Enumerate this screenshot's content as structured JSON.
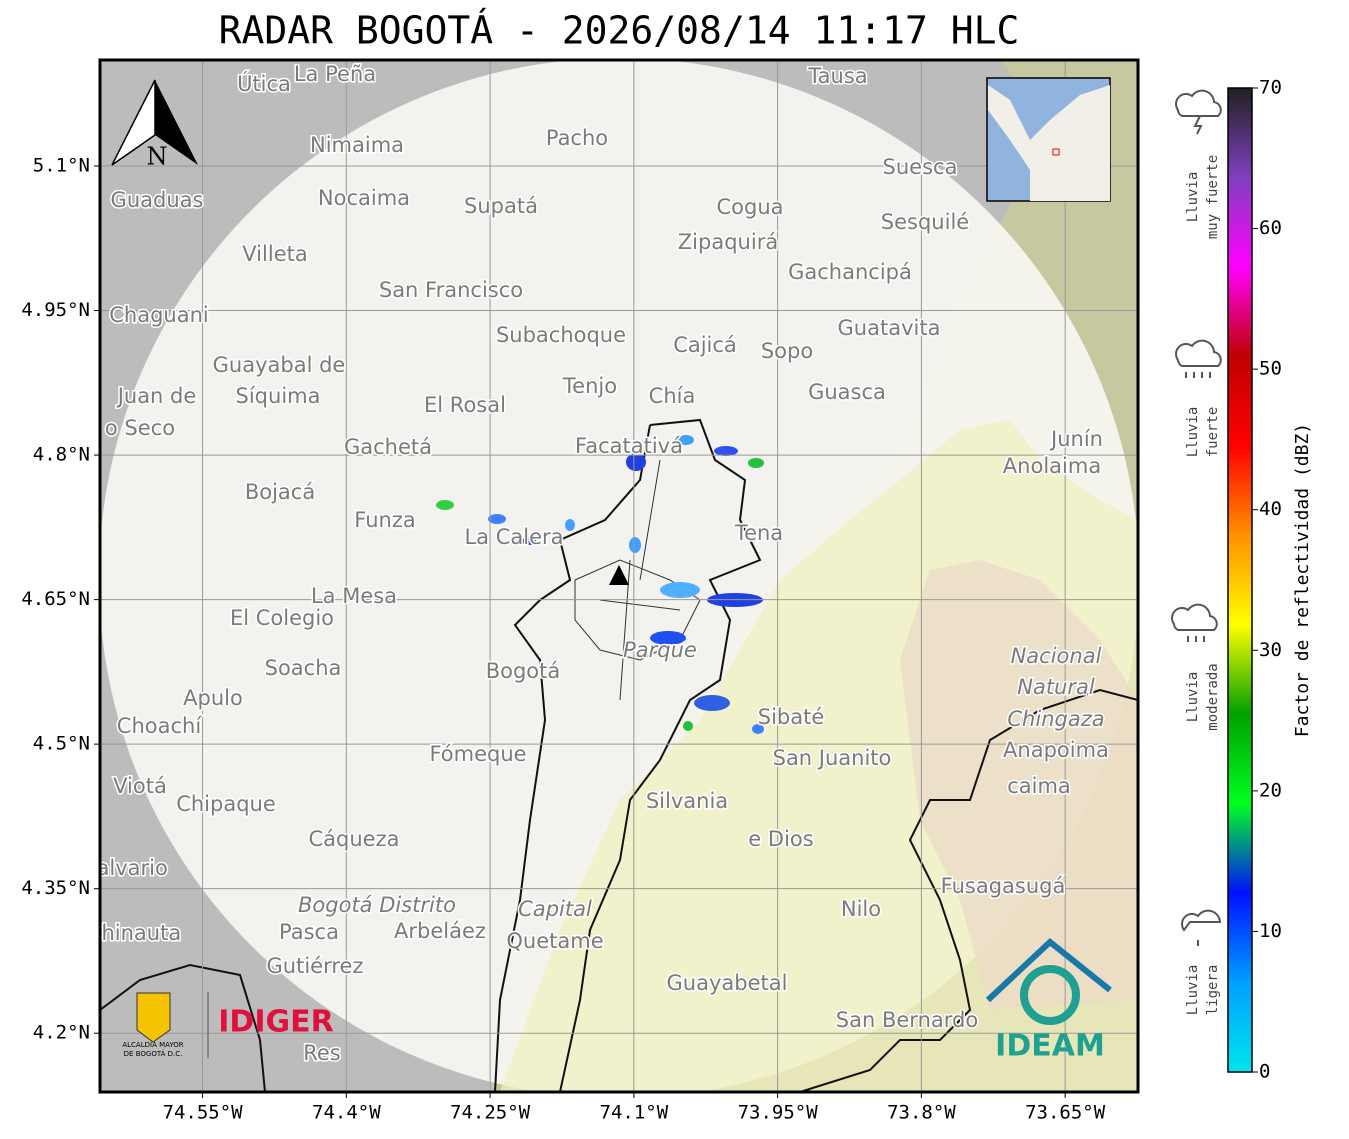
{
  "title": "RADAR BOGOTÁ - 2026/08/14 11:17 HLC",
  "map": {
    "xlim": [
      -74.657,
      -73.574
    ],
    "ylim": [
      4.139,
      5.21
    ],
    "xticks": [
      {
        "value": -74.55,
        "label": "74.55°W"
      },
      {
        "value": -74.4,
        "label": "74.4°W"
      },
      {
        "value": -74.25,
        "label": "74.25°W"
      },
      {
        "value": -74.1,
        "label": "74.1°W"
      },
      {
        "value": -73.95,
        "label": "73.95°W"
      },
      {
        "value": -73.8,
        "label": "73.8°W"
      },
      {
        "value": -73.65,
        "label": "73.65°W"
      }
    ],
    "yticks": [
      {
        "value": 5.1,
        "label": "5.1°N"
      },
      {
        "value": 4.95,
        "label": "4.95°N"
      },
      {
        "value": 4.8,
        "label": "4.8°N"
      },
      {
        "value": 4.65,
        "label": "4.65°N"
      },
      {
        "value": 4.5,
        "label": "4.5°N"
      },
      {
        "value": 4.35,
        "label": "4.35°N"
      },
      {
        "value": 4.2,
        "label": "4.2°N"
      }
    ],
    "grid": true,
    "north": "N",
    "places": [
      "Útica",
      "La Peña",
      "Tausa",
      "Pacho",
      "Nimaima",
      "Suesca",
      "Guaduas",
      "Nocaima",
      "Supatá",
      "Cogua",
      "Sesquilé",
      "Zipaquirá",
      "Villeta",
      "Gachancipá",
      "San Francisco",
      "Chaguani",
      "Guatavita",
      "Subachoque",
      "Cajicá",
      "Sopo",
      "Guayabal de",
      "Síquima",
      "Juan de",
      "Tenjo",
      "Chía",
      "Guasca",
      "El Rosal",
      "o Seco",
      "Facatativá",
      "Gachetá",
      "Junín",
      "Anolaima",
      "Bojacá",
      "Funza",
      "La Calera",
      "Tena",
      "La Mesa",
      "El Colegio",
      "Soacha",
      "Bogotá",
      "Parque",
      "Nacional",
      "Natural",
      "Chingaza",
      "Anapoima",
      "Apulo",
      "Choachí",
      "Sibaté",
      "Fómeque",
      "San Juanito",
      "caima",
      "Viotá",
      "Chipaque",
      "Silvania",
      "Cáqueza",
      "e Dios",
      "El Calvario",
      "Fusagasugá",
      "Bogotá Distrito",
      "Capital",
      "Quetame",
      "Nilo",
      "Chinauta",
      "Pasca",
      "Arbeláez",
      "Gutiérrez",
      "Guayabetal",
      "San Bernardo",
      "Res"
    ],
    "logos": {
      "alcaldia": [
        "ALCALDÍA MAYOR",
        "DE BOGOTÁ D.C."
      ],
      "idiger": "IDIGER",
      "ideam": "IDEAM"
    }
  },
  "colorbar": {
    "label": "Factor de reflectividad (dBZ)",
    "lim": [
      0,
      70
    ],
    "ticks": [
      0,
      10,
      20,
      30,
      40,
      50,
      60,
      70
    ],
    "colors": [
      "#00e5ee",
      "#00a0ff",
      "#0010ff",
      "#00ff20",
      "#00a000",
      "#ffff00",
      "#ff9000",
      "#ff0000",
      "#c00000",
      "#ff00ff",
      "#8040c0",
      "#202020"
    ]
  },
  "legend": [
    {
      "lines": [
        "Lluvia",
        "muy fuerte"
      ]
    },
    {
      "lines": [
        "Lluvia",
        "fuerte"
      ]
    },
    {
      "lines": [
        "Lluvia",
        "moderada"
      ]
    },
    {
      "lines": [
        "Lluvia",
        "ligera"
      ]
    }
  ]
}
